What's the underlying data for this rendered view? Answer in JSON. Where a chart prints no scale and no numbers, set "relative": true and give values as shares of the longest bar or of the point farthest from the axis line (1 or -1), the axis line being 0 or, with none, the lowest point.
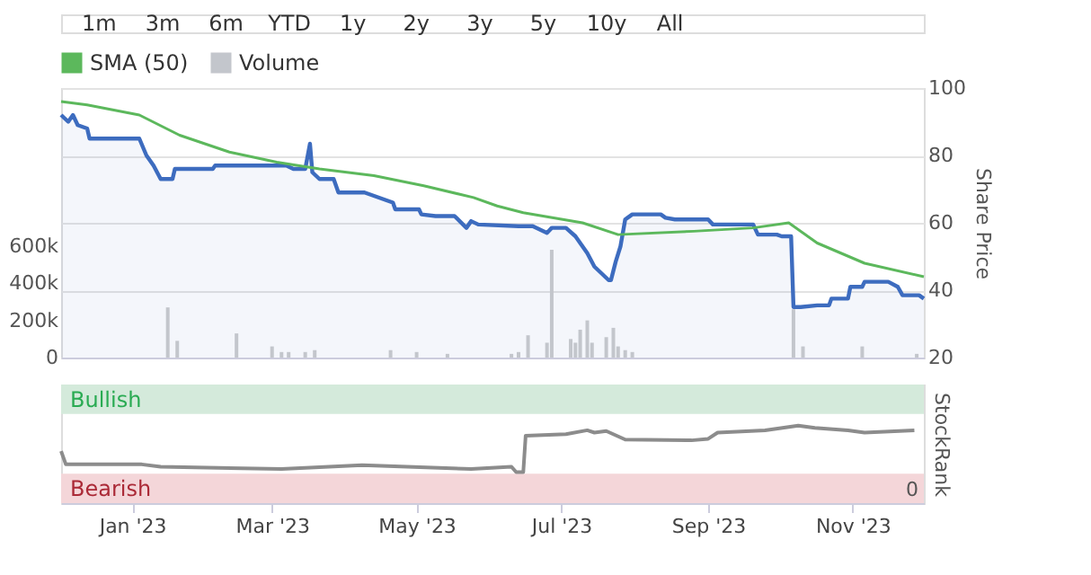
{
  "chart_data": [
    {
      "type": "line",
      "ylabel": "Share Price",
      "ylim": [
        20,
        100
      ],
      "yticks": [
        20,
        40,
        60,
        80,
        100
      ],
      "y2lim": [
        0,
        1450000
      ],
      "y2ticks": [
        0,
        {
          "value": 200000,
          "label": "200k"
        },
        {
          "value": 400000,
          "label": "400k"
        },
        {
          "value": 600000,
          "label": "600k"
        }
      ],
      "xlim": [
        "2022-12-02",
        "2023-12-01"
      ],
      "grid": "y",
      "legend": "top left",
      "tick_labels": "y",
      "annotations": [
        "1m",
        "3m",
        "6m",
        "YTD",
        "1y",
        "2y",
        "3y",
        "5y",
        "10y",
        "All"
      ],
      "series": [
        {
          "type": "area",
          "color": "#3d6cbf",
          "x": [
            "2022-12-02",
            "2022-12-05",
            "2022-12-07",
            "2022-12-09",
            "2022-12-13",
            "2022-12-14",
            "2023-01-04",
            "2023-01-07",
            "2023-01-10",
            "2023-01-13",
            "2023-01-18",
            "2023-01-19",
            "2023-02-04",
            "2023-02-05",
            "2023-03-03",
            "2023-03-07",
            "2023-03-10",
            "2023-03-15",
            "2023-03-17",
            "2023-03-18",
            "2023-03-21",
            "2023-03-27",
            "2023-03-29",
            "2023-04-09",
            "2023-04-21",
            "2023-04-22",
            "2023-05-02",
            "2023-05-03",
            "2023-05-09",
            "2023-05-17",
            "2023-05-22",
            "2023-05-24",
            "2023-05-27",
            "2023-06-13",
            "2023-06-19",
            "2023-06-25",
            "2023-06-27",
            "2023-07-03",
            "2023-07-07",
            "2023-07-12",
            "2023-07-15",
            "2023-07-18",
            "2023-07-21",
            "2023-07-22",
            "2023-07-24",
            "2023-07-26",
            "2023-07-28",
            "2023-07-29",
            "2023-07-31",
            "2023-08-12",
            "2023-08-14",
            "2023-08-18",
            "2023-09-01",
            "2023-09-03",
            "2023-09-20",
            "2023-09-22",
            "2023-09-30",
            "2023-10-02",
            "2023-10-06",
            "2023-10-07",
            "2023-10-10",
            "2023-10-17",
            "2023-10-22",
            "2023-10-23",
            "2023-10-30",
            "2023-10-31",
            "2023-11-05",
            "2023-11-06",
            "2023-11-16",
            "2023-11-20",
            "2023-11-22",
            "2023-11-29",
            "2023-12-01"
          ],
          "values": [
            92,
            90,
            92,
            89,
            88,
            85,
            85,
            80,
            77,
            73,
            73,
            76,
            76,
            77,
            77,
            77,
            76,
            76,
            83.5,
            75,
            73,
            73,
            69,
            69,
            66,
            64,
            64,
            62.5,
            62,
            62,
            58.5,
            60.5,
            59.5,
            59,
            59,
            57,
            58.5,
            58.5,
            56,
            51,
            47,
            45,
            43,
            43,
            48.5,
            53,
            61,
            61.5,
            62.5,
            62.5,
            61.5,
            61,
            61,
            59.5,
            59.5,
            56.5,
            56.5,
            56,
            56,
            35,
            35,
            35.5,
            35.5,
            37.5,
            37.5,
            41,
            41,
            42.5,
            42.5,
            41,
            38.5,
            38.5,
            37.5
          ]
        },
        {
          "type": "line",
          "name": "SMA (50)",
          "color": "#5cb85c",
          "x": [
            "2022-12-02",
            "2022-12-13",
            "2023-01-04",
            "2023-01-21",
            "2023-02-11",
            "2023-03-03",
            "2023-03-21",
            "2023-04-13",
            "2023-05-04",
            "2023-05-25",
            "2023-06-04",
            "2023-06-15",
            "2023-07-10",
            "2023-07-25",
            "2023-08-26",
            "2023-09-20",
            "2023-10-05",
            "2023-10-17",
            "2023-11-06",
            "2023-12-01"
          ],
          "values": [
            96,
            95,
            92,
            86,
            81,
            78,
            76,
            74,
            71,
            67.5,
            65,
            63,
            60,
            56.5,
            57.5,
            58.5,
            60,
            54,
            48,
            44
          ]
        },
        {
          "type": "bar",
          "name": "Volume",
          "color": "#c3c6cc",
          "axis": "y2",
          "x": [
            "2023-01-16",
            "2023-01-20",
            "2023-02-14",
            "2023-03-01",
            "2023-03-05",
            "2023-03-08",
            "2023-03-15",
            "2023-03-19",
            "2023-04-20",
            "2023-05-01",
            "2023-05-14",
            "2023-06-10",
            "2023-06-13",
            "2023-06-17",
            "2023-06-25",
            "2023-06-27",
            "2023-07-05",
            "2023-07-07",
            "2023-07-09",
            "2023-07-12",
            "2023-07-14",
            "2023-07-20",
            "2023-07-23",
            "2023-07-25",
            "2023-07-28",
            "2023-07-31",
            "2023-10-07",
            "2023-10-11",
            "2023-11-05",
            "2023-11-28"
          ],
          "values": [
            270000,
            90000,
            130000,
            60000,
            30000,
            30000,
            30000,
            40000,
            40000,
            30000,
            20000,
            20000,
            30000,
            120000,
            80000,
            580000,
            100000,
            80000,
            150000,
            200000,
            80000,
            110000,
            160000,
            60000,
            40000,
            30000,
            260000,
            60000,
            60000,
            20000
          ]
        }
      ]
    },
    {
      "type": "line",
      "ylabel": "StockRank",
      "relative": true,
      "grid": false,
      "annotations": [
        "0"
      ],
      "xlim": [
        "2022-12-02",
        "2023-12-01"
      ],
      "xticks": [
        {
          "value": "2023-01-01",
          "label": "Jan '23"
        },
        {
          "value": "2023-03-01",
          "label": "Mar '23"
        },
        {
          "value": "2023-05-01",
          "label": "May '23"
        },
        {
          "value": "2023-07-01",
          "label": "Jul '23"
        },
        {
          "value": "2023-09-01",
          "label": "Sep '23"
        },
        {
          "value": "2023-11-01",
          "label": "Nov '23"
        }
      ],
      "bands": [
        {
          "axis": "y",
          "from": 1.15,
          "to": 1.53,
          "label": "Bullish",
          "color": "#d4eadb"
        },
        {
          "axis": "y",
          "from": 0,
          "to": 0.38,
          "label": "Bearish",
          "color": "#f4d6d9"
        }
      ],
      "series": [
        {
          "color": "#8c8c8c",
          "x": [
            "2022-12-02",
            "2022-12-04",
            "2023-01-05",
            "2023-01-13",
            "2023-03-05",
            "2023-04-08",
            "2023-05-24",
            "2023-06-10",
            "2023-06-12",
            "2023-06-15",
            "2023-06-16",
            "2023-07-03",
            "2023-07-12",
            "2023-07-15",
            "2023-07-20",
            "2023-07-28",
            "2023-08-25",
            "2023-09-01",
            "2023-09-05",
            "2023-09-25",
            "2023-10-09",
            "2023-10-16",
            "2023-10-30",
            "2023-11-06",
            "2023-11-27"
          ],
          "values": [
            0.67,
            0.5,
            0.5,
            0.47,
            0.44,
            0.49,
            0.44,
            0.47,
            0.4,
            0.4,
            0.87,
            0.89,
            0.94,
            0.91,
            0.93,
            0.82,
            0.81,
            0.83,
            0.91,
            0.94,
            1,
            0.97,
            0.94,
            0.91,
            0.94
          ]
        }
      ]
    }
  ]
}
